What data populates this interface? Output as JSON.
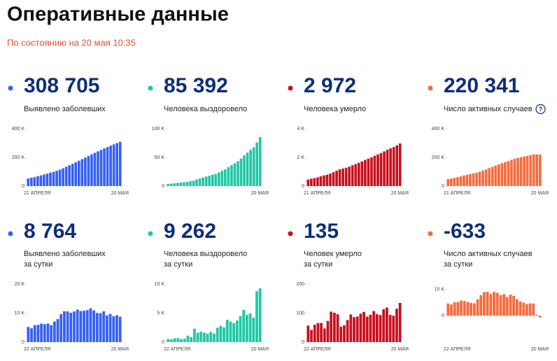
{
  "title": "Оперативные данные",
  "subtitle": "По состоянию на 20 мая 10:35",
  "cards": [
    {
      "value": "308 705",
      "label": [
        "Выявлено заболевших"
      ],
      "color": "#3560f5",
      "chart": {
        "type": "bar",
        "ylim": [
          0,
          400000
        ],
        "yticks": [
          0,
          {
            "value": 200000,
            "label": "200 K"
          },
          {
            "value": 400000,
            "label": "400 K"
          }
        ],
        "categories": [
          "21 АПРЕЛЯ",
          null,
          null,
          null,
          null,
          null,
          null,
          null,
          null,
          null,
          null,
          null,
          null,
          null,
          null,
          null,
          null,
          null,
          null,
          null,
          null,
          null,
          null,
          null,
          null,
          null,
          null,
          null,
          null,
          "20 МАЯ"
        ],
        "values": [
          52763,
          57999,
          62773,
          68622,
          74588,
          80949,
          87147,
          93558,
          99399,
          106498,
          114431,
          124054,
          134687,
          145268,
          155370,
          165929,
          177160,
          187859,
          198676,
          209688,
          221344,
          232243,
          242271,
          252245,
          262843,
          272043,
          281752,
          290678,
          299941,
          308705
        ]
      }
    },
    {
      "value": "85 392",
      "label": [
        "Человека выздоровело"
      ],
      "color": "#1ec8a5",
      "chart": {
        "type": "bar",
        "ylim": [
          0,
          100000
        ],
        "yticks": [
          0,
          {
            "value": 50000,
            "label": "50 K"
          },
          {
            "value": 100000,
            "label": "100 K"
          }
        ],
        "categories": [
          null,
          null,
          null,
          null,
          null,
          null,
          null,
          null,
          null,
          null,
          null,
          null,
          null,
          null,
          null,
          null,
          null,
          null,
          null,
          null,
          null,
          null,
          null,
          null,
          null,
          null,
          null,
          null,
          null,
          "20 МАЯ"
        ],
        "values": [
          3873,
          4420,
          4891,
          5568,
          6250,
          6767,
          7346,
          8456,
          9306,
          11619,
          13220,
          15013,
          16639,
          18095,
          19865,
          21327,
          23803,
          26608,
          29145,
          32985,
          36526,
          39801,
          43512,
          48003,
          53530,
          58226,
          63166,
          67373,
          76130,
          85392
        ]
      }
    },
    {
      "value": "2 972",
      "label": [
        "Человека умерло"
      ],
      "color": "#c8101e",
      "chart": {
        "type": "bar",
        "ylim": [
          0,
          4000
        ],
        "yticks": [
          0,
          {
            "value": 2000,
            "label": "2 K"
          },
          {
            "value": 4000,
            "label": "4 K"
          }
        ],
        "categories": [
          "21 АПРЕЛЯ",
          null,
          null,
          null,
          null,
          null,
          null,
          null,
          null,
          null,
          null,
          null,
          null,
          null,
          null,
          null,
          null,
          null,
          null,
          null,
          null,
          null,
          null,
          null,
          null,
          null,
          null,
          null,
          null,
          "20 МАЯ"
        ],
        "values": [
          456,
          513,
          555,
          615,
          681,
          747,
          794,
          867,
          972,
          1073,
          1169,
          1222,
          1280,
          1356,
          1451,
          1537,
          1625,
          1723,
          1827,
          1915,
          2009,
          2116,
          2212,
          2305,
          2418,
          2537,
          2631,
          2722,
          2837,
          2972
        ]
      }
    },
    {
      "value": "220 341",
      "label": [
        "Число активных случаев"
      ],
      "color": "#f76a3c",
      "help": "?",
      "chart": {
        "type": "bar",
        "ylim": [
          0,
          400000
        ],
        "yticks": [
          0,
          {
            "value": 200000,
            "label": "200 K"
          },
          {
            "value": 400000,
            "label": "400 K"
          }
        ],
        "categories": [
          "21 АПРЕЛЯ",
          null,
          null,
          null,
          null,
          null,
          null,
          null,
          null,
          null,
          null,
          null,
          null,
          null,
          null,
          null,
          null,
          null,
          null,
          null,
          null,
          null,
          null,
          null,
          null,
          null,
          null,
          null,
          null,
          "20 МАЯ"
        ],
        "values": [
          48434,
          53066,
          57327,
          62439,
          67657,
          73435,
          79007,
          84235,
          89121,
          93806,
          100042,
          107819,
          116768,
          125817,
          134054,
          143065,
          151732,
          159528,
          167704,
          174788,
          182809,
          190326,
          196547,
          201937,
          206895,
          211280,
          215955,
          220583,
          220974,
          220341
        ]
      }
    },
    {
      "value": "8 764",
      "label": [
        "Выявлено заболевших",
        "за сутки"
      ],
      "color": "#3560f5",
      "chart": {
        "type": "bar",
        "ylim": [
          0,
          20000
        ],
        "yticks": [
          0,
          {
            "value": 10000,
            "label": "10 K"
          },
          {
            "value": 20000,
            "label": "20 K"
          }
        ],
        "categories": [
          "22 АПРЕЛЯ",
          null,
          null,
          null,
          null,
          null,
          null,
          null,
          null,
          null,
          null,
          null,
          null,
          null,
          null,
          null,
          null,
          null,
          null,
          null,
          null,
          null,
          null,
          null,
          null,
          null,
          null,
          null,
          "20 МАЯ"
        ],
        "values": [
          5236,
          4774,
          5849,
          5966,
          6361,
          6198,
          6411,
          5841,
          7099,
          7933,
          9623,
          10633,
          10581,
          10102,
          10559,
          11231,
          10699,
          10817,
          11012,
          11656,
          10899,
          10028,
          9974,
          10598,
          9200,
          9709,
          8926,
          9263,
          8764
        ]
      }
    },
    {
      "value": "9 262",
      "label": [
        "Человека выздоровело",
        "за сутки"
      ],
      "color": "#1ec8a5",
      "chart": {
        "type": "bar",
        "ylim": [
          0,
          10000
        ],
        "yticks": [
          0,
          {
            "value": 5000,
            "label": "5 K"
          },
          {
            "value": 10000,
            "label": "10 K"
          }
        ],
        "categories": [
          "22 АПРЕЛЯ",
          null,
          null,
          null,
          null,
          null,
          null,
          null,
          null,
          null,
          null,
          null,
          null,
          null,
          null,
          null,
          null,
          null,
          null,
          null,
          null,
          null,
          null,
          null,
          null,
          null,
          null,
          null,
          "20 МАЯ"
        ],
        "values": [
          547,
          471,
          677,
          682,
          517,
          579,
          1110,
          850,
          2313,
          1601,
          1793,
          1626,
          1456,
          1770,
          1462,
          2476,
          2805,
          2537,
          3840,
          3541,
          3275,
          3711,
          4491,
          5527,
          4696,
          4940,
          4207,
          8757,
          9262
        ]
      }
    },
    {
      "value": "135",
      "label": [
        "Человек умерло",
        "за сутки"
      ],
      "color": "#c8101e",
      "chart": {
        "type": "bar",
        "ylim": [
          0,
          200
        ],
        "yticks": [
          0,
          100,
          200
        ],
        "categories": [
          "22 АПРЕЛЯ",
          null,
          null,
          null,
          null,
          null,
          null,
          null,
          null,
          null,
          null,
          null,
          null,
          null,
          null,
          null,
          null,
          null,
          null,
          null,
          null,
          null,
          null,
          null,
          null,
          null,
          null,
          null,
          "20 МАЯ"
        ],
        "values": [
          57,
          42,
          60,
          66,
          66,
          47,
          73,
          105,
          101,
          96,
          53,
          58,
          76,
          95,
          86,
          88,
          98,
          104,
          88,
          94,
          107,
          96,
          93,
          113,
          119,
          94,
          91,
          115,
          135
        ]
      }
    },
    {
      "value": "-633",
      "label": [
        "Число активных случаев",
        "за сутки"
      ],
      "color": "#f76a3c",
      "chart": {
        "type": "bar",
        "ylim": [
          -10000,
          12000
        ],
        "yticks": [
          0,
          {
            "value": 10000,
            "label": "10 K"
          }
        ],
        "categories": [
          "22 АПРЕЛЯ",
          null,
          null,
          null,
          null,
          null,
          null,
          null,
          null,
          null,
          null,
          null,
          null,
          null,
          null,
          null,
          null,
          null,
          null,
          null,
          null,
          null,
          null,
          null,
          null,
          null,
          null,
          null,
          "20 МАЯ"
        ],
        "values": [
          4632,
          4261,
          5112,
          5218,
          5778,
          5572,
          5228,
          4886,
          4685,
          6236,
          7777,
          8949,
          9049,
          8237,
          9011,
          8667,
          7796,
          8176,
          7084,
          8021,
          7517,
          6221,
          5390,
          4958,
          4385,
          4675,
          4628,
          391,
          -633
        ]
      }
    }
  ]
}
